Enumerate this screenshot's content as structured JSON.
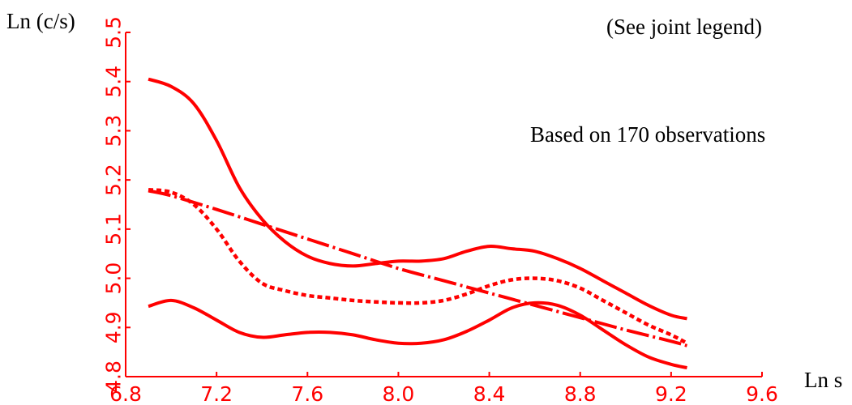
{
  "chart_data": {
    "type": "line",
    "ylabel": "Ln (c/s)",
    "xlabel": "Ln s",
    "annotations": [
      "(See joint legend)",
      "Based on 170 observations"
    ],
    "xlim": [
      6.8,
      9.6
    ],
    "ylim": [
      4.8,
      5.5
    ],
    "xticks": [
      "6.8",
      "7.2",
      "7.6",
      "8.0",
      "8.4",
      "8.8",
      "9.2",
      "9.6"
    ],
    "yticks": [
      "4.8",
      "4.9",
      "5.0",
      "5.1",
      "5.2",
      "5.3",
      "5.4",
      "5.5"
    ],
    "grid": false,
    "colors": {
      "axis": "#ff0000",
      "series": "#ff0000",
      "text": "#000000"
    },
    "series": [
      {
        "style": "solid",
        "x": [
          6.9,
          7.0,
          7.1,
          7.2,
          7.3,
          7.4,
          7.5,
          7.6,
          7.7,
          7.8,
          7.9,
          8.0,
          8.1,
          8.2,
          8.3,
          8.4,
          8.5,
          8.6,
          8.7,
          8.8,
          8.9,
          9.0,
          9.1,
          9.2,
          9.27
        ],
        "values": [
          5.405,
          5.39,
          5.355,
          5.28,
          5.185,
          5.12,
          5.075,
          5.045,
          5.03,
          5.025,
          5.03,
          5.035,
          5.035,
          5.04,
          5.055,
          5.065,
          5.06,
          5.055,
          5.04,
          5.02,
          4.995,
          4.97,
          4.945,
          4.925,
          4.918
        ]
      },
      {
        "style": "solid",
        "x": [
          6.9,
          7.0,
          7.1,
          7.2,
          7.3,
          7.4,
          7.5,
          7.6,
          7.7,
          7.8,
          7.9,
          8.0,
          8.1,
          8.2,
          8.3,
          8.4,
          8.5,
          8.6,
          8.7,
          8.8,
          8.9,
          9.0,
          9.1,
          9.2,
          9.27
        ],
        "values": [
          4.943,
          4.955,
          4.94,
          4.915,
          4.89,
          4.88,
          4.885,
          4.89,
          4.89,
          4.885,
          4.875,
          4.868,
          4.868,
          4.875,
          4.892,
          4.915,
          4.94,
          4.95,
          4.945,
          4.925,
          4.895,
          4.865,
          4.84,
          4.825,
          4.818
        ]
      },
      {
        "style": "dotted",
        "x": [
          6.9,
          7.0,
          7.1,
          7.2,
          7.3,
          7.4,
          7.5,
          7.6,
          7.7,
          7.8,
          7.9,
          8.0,
          8.1,
          8.2,
          8.3,
          8.4,
          8.5,
          8.6,
          8.7,
          8.8,
          8.9,
          9.0,
          9.1,
          9.2,
          9.27
        ],
        "values": [
          5.18,
          5.175,
          5.15,
          5.1,
          5.035,
          4.99,
          4.975,
          4.965,
          4.96,
          4.955,
          4.952,
          4.95,
          4.95,
          4.955,
          4.968,
          4.985,
          4.997,
          5.0,
          4.995,
          4.98,
          4.955,
          4.93,
          4.905,
          4.885,
          4.868
        ]
      },
      {
        "style": "dash-dot",
        "x": [
          6.9,
          7.0,
          7.2,
          7.4,
          7.6,
          7.8,
          8.0,
          8.2,
          8.4,
          8.6,
          8.8,
          9.0,
          9.2,
          9.27
        ],
        "values": [
          5.178,
          5.168,
          5.14,
          5.11,
          5.08,
          5.05,
          5.02,
          4.995,
          4.97,
          4.945,
          4.92,
          4.895,
          4.872,
          4.863
        ]
      }
    ]
  }
}
